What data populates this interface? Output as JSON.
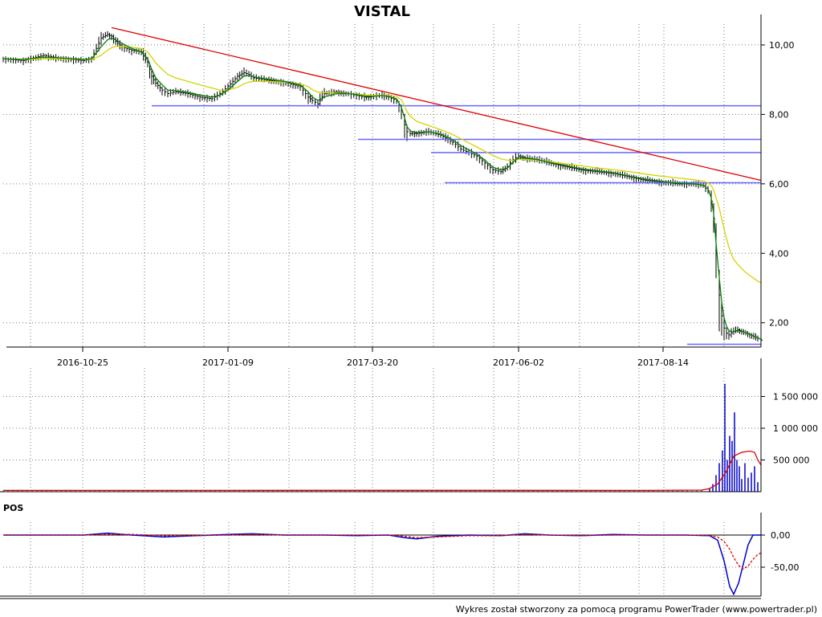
{
  "title": "VISTAL",
  "footer": "Wykres został stworzony za pomocą programu PowerTrader (www.powertrader.pl)",
  "colors": {
    "price_bars": "#000000",
    "ema_fast": "#008000",
    "ema_slow": "#d4d400",
    "trendline": "#e00000",
    "support_lines": "#6666ff",
    "volume_bars": "#0000cc",
    "volume_avg": "#e00000",
    "pos_line": "#0000cc",
    "pos_signal": "#e00000"
  },
  "chart_data": [
    {
      "type": "line",
      "panel": "price",
      "title": "VISTAL",
      "x_tick_labels": [
        "2016-10-25",
        "2017-01-09",
        "2017-03-20",
        "2017-06-02",
        "2017-08-14"
      ],
      "y_tick_labels": [
        "10,00",
        "8,00",
        "6,00",
        "4,00",
        "2,00"
      ],
      "ylim": [
        1.3,
        10.6
      ],
      "grid": true,
      "x": [
        0,
        25,
        50,
        75,
        100,
        110,
        122,
        130,
        135,
        140,
        148,
        160,
        172,
        180,
        185,
        190,
        198,
        205,
        215,
        230,
        245,
        260,
        270,
        280,
        292,
        300,
        306,
        312,
        325,
        340,
        355,
        370,
        380,
        385,
        392,
        400,
        415,
        430,
        440,
        450,
        458,
        465,
        472,
        480,
        490,
        496,
        500,
        503,
        507,
        515,
        530,
        545,
        560,
        570,
        580,
        590,
        600,
        610,
        620,
        628,
        635,
        642,
        650,
        665,
        680,
        700,
        720,
        740,
        760,
        780,
        800,
        820,
        840,
        860,
        872,
        878,
        882,
        885,
        888,
        892,
        895,
        898,
        901,
        904,
        907,
        910,
        915,
        920,
        925,
        930,
        935,
        940,
        944
      ],
      "series": [
        {
          "kind": "ohlc_close",
          "values": [
            9.6,
            9.55,
            9.7,
            9.6,
            9.55,
            9.6,
            10.2,
            10.3,
            10.25,
            10.1,
            9.95,
            9.85,
            9.8,
            9.5,
            9.1,
            8.9,
            8.7,
            8.6,
            8.65,
            8.6,
            8.5,
            8.45,
            8.6,
            8.8,
            9.1,
            9.2,
            9.15,
            9.05,
            9.0,
            8.95,
            8.9,
            8.8,
            8.5,
            8.4,
            8.3,
            8.6,
            8.65,
            8.6,
            8.55,
            8.5,
            8.5,
            8.55,
            8.55,
            8.5,
            8.4,
            8.1,
            7.7,
            7.5,
            7.45,
            7.45,
            7.5,
            7.4,
            7.2,
            7.0,
            6.9,
            6.8,
            6.6,
            6.4,
            6.35,
            6.5,
            6.7,
            6.8,
            6.75,
            6.7,
            6.6,
            6.5,
            6.4,
            6.35,
            6.3,
            6.2,
            6.1,
            6.05,
            6.0,
            6.0,
            5.95,
            5.8,
            5.5,
            5.0,
            4.0,
            2.8,
            2.2,
            1.85,
            1.7,
            1.65,
            1.7,
            1.75,
            1.8,
            1.75,
            1.7,
            1.65,
            1.6,
            1.55,
            1.5
          ]
        },
        {
          "kind": "ema_fast",
          "values": [
            9.6,
            9.58,
            9.65,
            9.62,
            9.58,
            9.6,
            9.95,
            10.15,
            10.2,
            10.15,
            10.05,
            9.9,
            9.8,
            9.6,
            9.3,
            9.05,
            8.85,
            8.7,
            8.68,
            8.63,
            8.56,
            8.5,
            8.55,
            8.7,
            8.95,
            9.1,
            9.12,
            9.08,
            9.03,
            8.98,
            8.93,
            8.85,
            8.65,
            8.5,
            8.4,
            8.5,
            8.6,
            8.6,
            8.57,
            8.53,
            8.52,
            8.53,
            8.54,
            8.52,
            8.45,
            8.2,
            7.9,
            7.65,
            7.52,
            7.48,
            7.5,
            7.43,
            7.27,
            7.1,
            6.98,
            6.86,
            6.68,
            6.48,
            6.4,
            6.45,
            6.62,
            6.75,
            6.74,
            6.7,
            6.62,
            6.53,
            6.43,
            6.37,
            6.32,
            6.22,
            6.13,
            6.07,
            6.02,
            6.0,
            5.96,
            5.85,
            5.6,
            5.15,
            4.3,
            3.3,
            2.6,
            2.15,
            1.9,
            1.78,
            1.74,
            1.75,
            1.77,
            1.75,
            1.72,
            1.67,
            1.62,
            1.57,
            1.52
          ]
        },
        {
          "kind": "ema_slow",
          "values": [
            9.6,
            9.58,
            9.6,
            9.6,
            9.58,
            9.58,
            9.7,
            9.85,
            9.92,
            9.96,
            9.96,
            9.93,
            9.9,
            9.8,
            9.65,
            9.48,
            9.3,
            9.15,
            9.05,
            8.95,
            8.85,
            8.76,
            8.7,
            8.7,
            8.78,
            8.88,
            8.93,
            8.95,
            8.95,
            8.94,
            8.92,
            8.88,
            8.8,
            8.72,
            8.64,
            8.63,
            8.62,
            8.6,
            8.58,
            8.56,
            8.55,
            8.55,
            8.55,
            8.54,
            8.52,
            8.42,
            8.25,
            8.08,
            7.95,
            7.8,
            7.68,
            7.56,
            7.42,
            7.3,
            7.18,
            7.06,
            6.94,
            6.82,
            6.72,
            6.68,
            6.68,
            6.7,
            6.7,
            6.68,
            6.64,
            6.58,
            6.52,
            6.46,
            6.41,
            6.35,
            6.28,
            6.22,
            6.17,
            6.12,
            6.08,
            6.03,
            5.95,
            5.82,
            5.6,
            5.3,
            5.0,
            4.7,
            4.42,
            4.18,
            3.98,
            3.82,
            3.68,
            3.56,
            3.45,
            3.36,
            3.28,
            3.2,
            3.15
          ]
        }
      ],
      "trendline": {
        "x": [
          135,
          944
        ],
        "y": [
          10.5,
          6.1
        ]
      },
      "horizontal_lines": [
        {
          "y": 8.25,
          "x": [
            185,
            944
          ]
        },
        {
          "y": 7.28,
          "x": [
            442,
            944
          ]
        },
        {
          "y": 6.9,
          "x": [
            533,
            944
          ]
        },
        {
          "y": 6.03,
          "x": [
            550,
            944
          ]
        },
        {
          "y": 1.38,
          "x": [
            852,
            944
          ]
        }
      ]
    },
    {
      "type": "bar",
      "panel": "volume",
      "y_tick_labels": [
        "1 500 000",
        "1 000 000",
        "500 000"
      ],
      "ylim": [
        0,
        1950000
      ],
      "grid": true,
      "x": [
        880,
        884,
        888,
        892,
        896,
        899,
        902,
        905,
        908,
        911,
        914,
        917,
        920,
        924,
        928,
        932,
        936,
        940
      ],
      "values": [
        60000,
        120000,
        260000,
        450000,
        650000,
        1700000,
        500000,
        880000,
        800000,
        1250000,
        500000,
        400000,
        200000,
        450000,
        220000,
        300000,
        400000,
        150000
      ],
      "baseline_value": 25000,
      "avg_line": {
        "x": [
          0,
          200,
          400,
          600,
          800,
          870,
          880,
          890,
          900,
          910,
          920,
          930,
          936,
          940,
          944
        ],
        "values": [
          20000,
          20000,
          22000,
          21000,
          20000,
          25000,
          50000,
          120000,
          300000,
          560000,
          620000,
          640000,
          620000,
          500000,
          420000
        ]
      }
    },
    {
      "type": "line",
      "panel": "POS",
      "label": "POS",
      "y_tick_labels": [
        "0,00",
        "-50,00"
      ],
      "ylim": [
        -95,
        20
      ],
      "grid": true,
      "x": [
        0,
        100,
        130,
        160,
        200,
        240,
        280,
        310,
        350,
        400,
        440,
        480,
        500,
        515,
        540,
        580,
        620,
        650,
        680,
        720,
        760,
        800,
        850,
        880,
        890,
        898,
        905,
        910,
        916,
        922,
        928,
        934,
        940,
        944
      ],
      "series": [
        {
          "kind": "pos",
          "values": [
            0,
            0,
            3,
            0,
            -3,
            -1,
            1,
            2,
            0,
            0,
            -1,
            0,
            -4,
            -6,
            -2,
            0,
            -1,
            2,
            0,
            -1,
            1,
            0,
            0,
            -1,
            -8,
            -40,
            -80,
            -92,
            -75,
            -45,
            -15,
            0,
            0,
            0
          ]
        },
        {
          "kind": "signal",
          "values": [
            0,
            0,
            1,
            1,
            -1,
            -1,
            0,
            1,
            0,
            0,
            0,
            0,
            -2,
            -4,
            -3,
            -1,
            -1,
            1,
            0,
            -1,
            0,
            0,
            0,
            -1,
            -3,
            -10,
            -22,
            -35,
            -47,
            -53,
            -48,
            -38,
            -30,
            -28
          ]
        }
      ]
    }
  ]
}
